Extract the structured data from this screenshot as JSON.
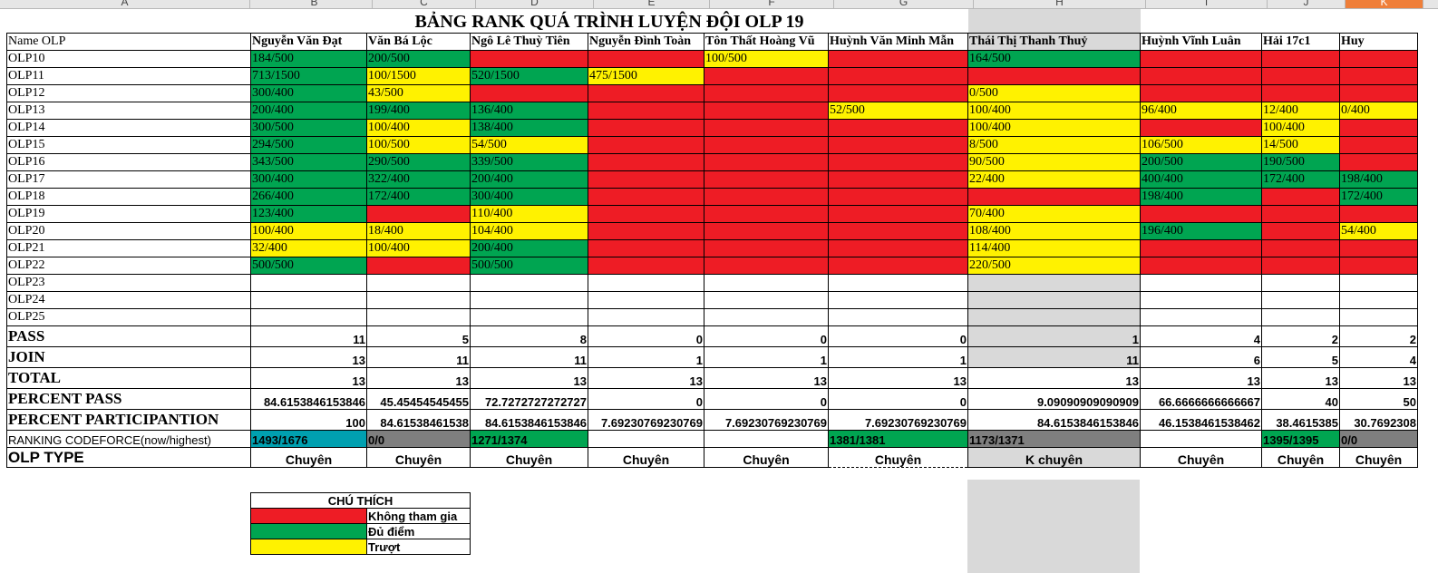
{
  "column_letters": [
    "A",
    "B",
    "C",
    "D",
    "E",
    "F",
    "G",
    "H",
    "I",
    "J",
    "K"
  ],
  "title": "BẢNG RANK QUÁ TRÌNH LUYỆN ĐỘI OLP 19",
  "header_label": "Name OLP",
  "members": [
    "Nguyễn Văn Đạt",
    "Văn Bá Lộc",
    "Ngô Lê Thuỳ Tiên",
    "Nguyễn Đình Toàn",
    "Tôn Thất Hoàng Vũ",
    "Huỳnh Văn Minh Mẫn",
    "Thái Thị Thanh Thuỷ",
    "Huỳnh Vĩnh Luân",
    "Hải 17c1",
    "Huy"
  ],
  "rows": [
    {
      "name": "OLP10",
      "cells": [
        [
          "184/500",
          "g"
        ],
        [
          "200/500",
          "g"
        ],
        [
          "",
          "r"
        ],
        [
          "",
          "r"
        ],
        [
          "100/500",
          "y"
        ],
        [
          "",
          "r"
        ],
        [
          "164/500",
          "g"
        ],
        [
          "",
          "r"
        ],
        [
          "",
          "r"
        ],
        [
          "",
          "r"
        ]
      ]
    },
    {
      "name": "OLP11",
      "cells": [
        [
          "713/1500",
          "g"
        ],
        [
          "100/1500",
          "y"
        ],
        [
          "520/1500",
          "g"
        ],
        [
          "475/1500",
          "y"
        ],
        [
          "",
          "r"
        ],
        [
          "",
          "r"
        ],
        [
          "",
          "r"
        ],
        [
          "",
          "r"
        ],
        [
          "",
          "r"
        ],
        [
          "",
          "r"
        ]
      ]
    },
    {
      "name": "OLP12",
      "cells": [
        [
          "300/400",
          "g"
        ],
        [
          "43/500",
          "y"
        ],
        [
          "",
          "r"
        ],
        [
          "",
          "r"
        ],
        [
          "",
          "r"
        ],
        [
          "",
          "r"
        ],
        [
          "0/500",
          "y"
        ],
        [
          "",
          "r"
        ],
        [
          "",
          "r"
        ],
        [
          "",
          "r"
        ]
      ]
    },
    {
      "name": "OLP13",
      "cells": [
        [
          "200/400",
          "g"
        ],
        [
          "199/400",
          "g"
        ],
        [
          "136/400",
          "g"
        ],
        [
          "",
          "r"
        ],
        [
          "",
          "r"
        ],
        [
          "52/500",
          "y"
        ],
        [
          "100/400",
          "y"
        ],
        [
          "96/400",
          "y"
        ],
        [
          "12/400",
          "y"
        ],
        [
          "0/400",
          "y"
        ]
      ]
    },
    {
      "name": "OLP14",
      "cells": [
        [
          "300/500",
          "g"
        ],
        [
          "100/400",
          "y"
        ],
        [
          "138/400",
          "g"
        ],
        [
          "",
          "r"
        ],
        [
          "",
          "r"
        ],
        [
          "",
          "r"
        ],
        [
          "100/400",
          "y"
        ],
        [
          "",
          "r"
        ],
        [
          "100/400",
          "y"
        ],
        [
          "",
          "r"
        ]
      ]
    },
    {
      "name": "OLP15",
      "cells": [
        [
          "294/500",
          "g"
        ],
        [
          "100/500",
          "y"
        ],
        [
          "54/500",
          "y"
        ],
        [
          "",
          "r"
        ],
        [
          "",
          "r"
        ],
        [
          "",
          "r"
        ],
        [
          "8/500",
          "y"
        ],
        [
          "106/500",
          "y"
        ],
        [
          "14/500",
          "y"
        ],
        [
          "",
          "r"
        ]
      ]
    },
    {
      "name": "OLP16",
      "cells": [
        [
          "343/500",
          "g"
        ],
        [
          "290/500",
          "g"
        ],
        [
          "339/500",
          "g"
        ],
        [
          "",
          "r"
        ],
        [
          "",
          "r"
        ],
        [
          "",
          "r"
        ],
        [
          "90/500",
          "y"
        ],
        [
          "200/500",
          "g"
        ],
        [
          "190/500",
          "g"
        ],
        [
          "",
          "r"
        ]
      ]
    },
    {
      "name": "OLP17",
      "cells": [
        [
          "300/400",
          "g"
        ],
        [
          "322/400",
          "g"
        ],
        [
          "200/400",
          "g"
        ],
        [
          "",
          "r"
        ],
        [
          "",
          "r"
        ],
        [
          "",
          "r"
        ],
        [
          "22/400",
          "y"
        ],
        [
          "400/400",
          "g"
        ],
        [
          "172/400",
          "g"
        ],
        [
          "198/400",
          "g"
        ]
      ]
    },
    {
      "name": "OLP18",
      "cells": [
        [
          "266/400",
          "g"
        ],
        [
          "172/400",
          "g"
        ],
        [
          "300/400",
          "g"
        ],
        [
          "",
          "r"
        ],
        [
          "",
          "r"
        ],
        [
          "",
          "r"
        ],
        [
          "",
          "r"
        ],
        [
          "198/400",
          "g"
        ],
        [
          "",
          "r"
        ],
        [
          "172/400",
          "g"
        ]
      ]
    },
    {
      "name": "OLP19",
      "cells": [
        [
          "123/400",
          "g"
        ],
        [
          "",
          "r"
        ],
        [
          "110/400",
          "y"
        ],
        [
          "",
          "r"
        ],
        [
          "",
          "r"
        ],
        [
          "",
          "r"
        ],
        [
          "70/400",
          "y"
        ],
        [
          "",
          "r"
        ],
        [
          "",
          "r"
        ],
        [
          "",
          "r"
        ]
      ]
    },
    {
      "name": "OLP20",
      "cells": [
        [
          "100/400",
          "y"
        ],
        [
          "18/400",
          "y"
        ],
        [
          "104/400",
          "y"
        ],
        [
          "",
          "r"
        ],
        [
          "",
          "r"
        ],
        [
          "",
          "r"
        ],
        [
          "108/400",
          "y"
        ],
        [
          "196/400",
          "g"
        ],
        [
          "",
          "r"
        ],
        [
          "54/400",
          "y"
        ]
      ]
    },
    {
      "name": "OLP21",
      "cells": [
        [
          "32/400",
          "y"
        ],
        [
          "100/400",
          "y"
        ],
        [
          "200/400",
          "g"
        ],
        [
          "",
          "r"
        ],
        [
          "",
          "r"
        ],
        [
          "",
          "r"
        ],
        [
          "114/400",
          "y"
        ],
        [
          "",
          "r"
        ],
        [
          "",
          "r"
        ],
        [
          "",
          "r"
        ]
      ]
    },
    {
      "name": "OLP22",
      "cells": [
        [
          "500/500",
          "g"
        ],
        [
          "",
          "r"
        ],
        [
          "500/500",
          "g"
        ],
        [
          "",
          "r"
        ],
        [
          "",
          "r"
        ],
        [
          "",
          "r"
        ],
        [
          "220/500",
          "y"
        ],
        [
          "",
          "r"
        ],
        [
          "",
          "r"
        ],
        [
          "",
          "r"
        ]
      ]
    },
    {
      "name": "OLP23",
      "cells": [
        [
          "",
          ""
        ],
        [
          "",
          ""
        ],
        [
          "",
          ""
        ],
        [
          "",
          ""
        ],
        [
          "",
          ""
        ],
        [
          "",
          ""
        ],
        [
          "",
          "grey"
        ],
        [
          "",
          ""
        ],
        [
          "",
          ""
        ],
        [
          "",
          ""
        ]
      ]
    },
    {
      "name": "OLP24",
      "cells": [
        [
          "",
          ""
        ],
        [
          "",
          ""
        ],
        [
          "",
          ""
        ],
        [
          "",
          ""
        ],
        [
          "",
          ""
        ],
        [
          "",
          ""
        ],
        [
          "",
          "grey"
        ],
        [
          "",
          ""
        ],
        [
          "",
          ""
        ],
        [
          "",
          ""
        ]
      ]
    },
    {
      "name": "OLP25",
      "cells": [
        [
          "",
          ""
        ],
        [
          "",
          ""
        ],
        [
          "",
          ""
        ],
        [
          "",
          ""
        ],
        [
          "",
          ""
        ],
        [
          "",
          ""
        ],
        [
          "",
          "grey"
        ],
        [
          "",
          ""
        ],
        [
          "",
          ""
        ],
        [
          "",
          ""
        ]
      ]
    }
  ],
  "stats": [
    {
      "label": "PASS",
      "values": [
        "11",
        "5",
        "8",
        "0",
        "0",
        "0",
        "1",
        "4",
        "2",
        "2"
      ]
    },
    {
      "label": "JOIN",
      "values": [
        "13",
        "11",
        "11",
        "1",
        "1",
        "1",
        "11",
        "6",
        "5",
        "4"
      ]
    },
    {
      "label": "TOTAL",
      "values": [
        "13",
        "13",
        "13",
        "13",
        "13",
        "13",
        "13",
        "13",
        "13",
        "13"
      ]
    },
    {
      "label": "PERCENT PASS",
      "values": [
        "84.6153846153846",
        "45.45454545455",
        "72.7272727272727",
        "0",
        "0",
        "0",
        "9.09090909090909",
        "66.6666666666667",
        "40",
        "50"
      ]
    },
    {
      "label": "PERCENT PARTICIPANTION",
      "values": [
        "100",
        "84.61538461538",
        "84.6153846153846",
        "7.69230769230769",
        "7.69230769230769",
        "7.69230769230769",
        "84.6153846153846",
        "46.1538461538462",
        "38.4615385",
        "30.7692308"
      ]
    }
  ],
  "ranking": {
    "label": "RANKING CODEFORCE(now/highest)",
    "cells": [
      [
        "1493/1676",
        "t"
      ],
      [
        "0/0",
        "d"
      ],
      [
        "1271/1374",
        "g"
      ],
      [
        "",
        ""
      ],
      [
        "",
        ""
      ],
      [
        "1381/1381",
        "g"
      ],
      [
        "1173/1371",
        "d"
      ],
      [
        "",
        ""
      ],
      [
        "1395/1395",
        "g"
      ],
      [
        "0/0",
        "d"
      ]
    ]
  },
  "olp_type": {
    "label": "OLP TYPE",
    "values": [
      "Chuyên",
      "Chuyên",
      "Chuyên",
      "Chuyên",
      "Chuyên",
      "Chuyên",
      "K chuyên",
      "Chuyên",
      "Chuyên",
      "Chuyên"
    ]
  },
  "legend": {
    "title": "CHÚ THÍCH",
    "items": [
      {
        "color": "r",
        "label": "Không tham gia"
      },
      {
        "color": "g",
        "label": "Đủ điểm"
      },
      {
        "color": "y",
        "label": "Trượt"
      }
    ]
  }
}
